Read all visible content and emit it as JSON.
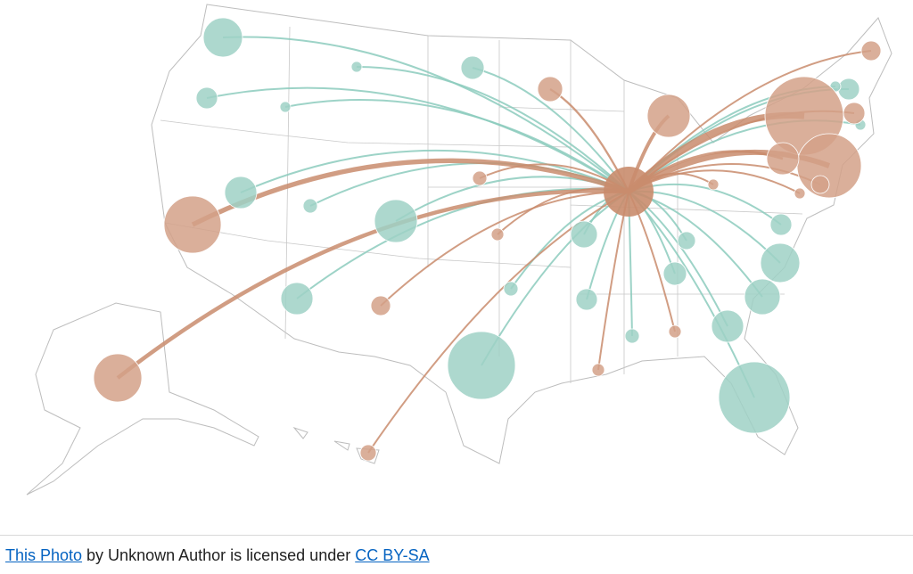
{
  "caption": {
    "link_text": "This Photo",
    "middle_text": " by Unknown Author is licensed under ",
    "license_text": "CC BY-SA"
  }
}
